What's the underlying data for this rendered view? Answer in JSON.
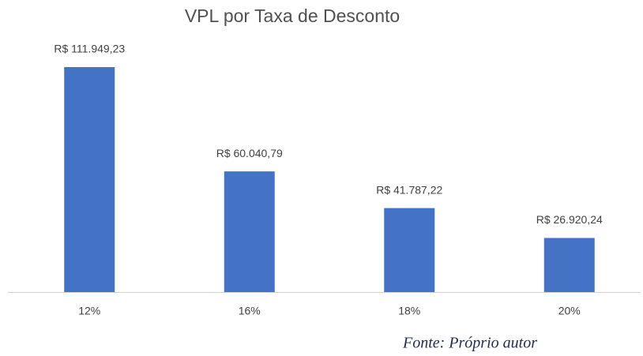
{
  "chart_data": {
    "type": "bar",
    "title": "VPL por Taxa de Desconto",
    "categories": [
      "12%",
      "16%",
      "18%",
      "20%"
    ],
    "values": [
      111949.23,
      60040.79,
      41787.22,
      26920.24
    ],
    "value_labels": [
      "R$ 111.949,23",
      "R$ 60.040,79",
      "R$ 41.787,22",
      "R$ 26.920,24"
    ],
    "color": "#4472c4",
    "source": "Fonte: Próprio autor"
  }
}
